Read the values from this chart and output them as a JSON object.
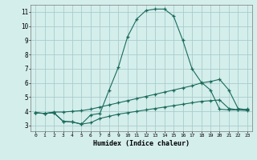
{
  "xlabel": "Humidex (Indice chaleur)",
  "background_color": "#d4eeec",
  "grid_color": "#aacccc",
  "line_color": "#1a6b5a",
  "xlim": [
    -0.5,
    23.5
  ],
  "ylim": [
    2.6,
    11.5
  ],
  "xticks": [
    0,
    1,
    2,
    3,
    4,
    5,
    6,
    7,
    8,
    9,
    10,
    11,
    12,
    13,
    14,
    15,
    16,
    17,
    18,
    19,
    20,
    21,
    22,
    23
  ],
  "yticks": [
    3,
    4,
    5,
    6,
    7,
    8,
    9,
    10,
    11
  ],
  "line1_x": [
    0,
    1,
    2,
    3,
    4,
    5,
    6,
    7,
    8,
    9,
    10,
    11,
    12,
    13,
    14,
    15,
    16,
    17,
    18,
    19,
    20,
    21,
    22,
    23
  ],
  "line1_y": [
    3.9,
    3.85,
    3.9,
    3.3,
    3.25,
    3.1,
    3.75,
    3.85,
    5.5,
    7.1,
    9.25,
    10.5,
    11.1,
    11.2,
    11.2,
    10.7,
    9.0,
    7.0,
    6.05,
    5.5,
    4.15,
    4.1,
    4.1,
    4.15
  ],
  "line2_x": [
    0,
    1,
    2,
    3,
    4,
    5,
    6,
    7,
    8,
    9,
    10,
    11,
    12,
    13,
    14,
    15,
    16,
    17,
    18,
    19,
    20,
    21,
    22,
    23
  ],
  "line2_y": [
    3.9,
    3.85,
    3.95,
    3.95,
    4.0,
    4.05,
    4.15,
    4.3,
    4.45,
    4.6,
    4.75,
    4.9,
    5.05,
    5.2,
    5.35,
    5.5,
    5.65,
    5.8,
    6.0,
    6.1,
    6.25,
    5.5,
    4.2,
    4.1
  ],
  "line3_x": [
    0,
    1,
    2,
    3,
    4,
    5,
    6,
    7,
    8,
    9,
    10,
    11,
    12,
    13,
    14,
    15,
    16,
    17,
    18,
    19,
    20,
    21,
    22,
    23
  ],
  "line3_y": [
    3.9,
    3.85,
    3.9,
    3.3,
    3.25,
    3.1,
    3.2,
    3.5,
    3.65,
    3.8,
    3.9,
    4.0,
    4.1,
    4.2,
    4.3,
    4.4,
    4.5,
    4.6,
    4.7,
    4.75,
    4.8,
    4.2,
    4.1,
    4.05
  ]
}
